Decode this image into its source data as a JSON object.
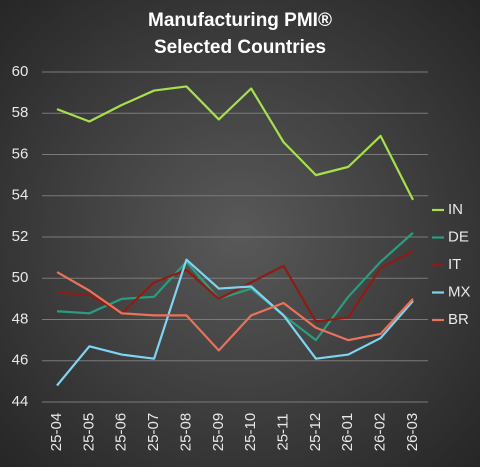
{
  "chart_data": {
    "type": "line",
    "title": "Manufacturing PMI®",
    "subtitle": "Selected Countries",
    "categories": [
      "25-04",
      "25-05",
      "25-06",
      "25-07",
      "25-08",
      "25-09",
      "25-10",
      "25-11",
      "25-12",
      "26-01",
      "26-02",
      "26-03"
    ],
    "series": [
      {
        "name": "IN",
        "color": "#a6e04c",
        "values": [
          58.2,
          57.6,
          58.4,
          59.1,
          59.3,
          57.7,
          59.2,
          56.6,
          55.0,
          55.4,
          56.9,
          53.8
        ]
      },
      {
        "name": "DE",
        "color": "#2a9d7f",
        "values": [
          48.4,
          48.3,
          49.0,
          49.1,
          50.8,
          49.0,
          49.5,
          48.2,
          47.0,
          49.1,
          50.8,
          52.2
        ]
      },
      {
        "name": "IT",
        "color": "#8e1c14",
        "values": [
          49.3,
          49.2,
          48.3,
          49.8,
          50.4,
          49.0,
          49.8,
          50.6,
          47.9,
          48.1,
          50.5,
          51.3
        ]
      },
      {
        "name": "MX",
        "color": "#7fd4f2",
        "values": [
          44.8,
          46.7,
          46.3,
          46.1,
          50.9,
          49.5,
          49.6,
          48.2,
          46.1,
          46.3,
          47.1,
          48.9
        ]
      },
      {
        "name": "BR",
        "color": "#e8735a",
        "values": [
          50.3,
          49.4,
          48.3,
          48.2,
          48.2,
          46.5,
          48.2,
          48.8,
          47.6,
          47.0,
          47.3,
          49.0
        ]
      }
    ],
    "ylim": [
      44,
      60
    ],
    "yticks": [
      44,
      46,
      48,
      50,
      52,
      54,
      56,
      58,
      60
    ],
    "grid": true,
    "legend": "right"
  }
}
